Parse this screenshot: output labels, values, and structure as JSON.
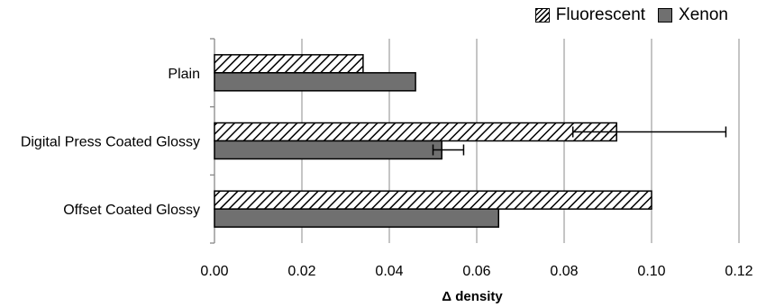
{
  "chart_data": {
    "type": "bar",
    "orientation": "horizontal",
    "categories": [
      "Plain",
      "Digital Press Coated Glossy",
      "Offset Coated Glossy"
    ],
    "series": [
      {
        "name": "Fluorescent",
        "values": [
          0.034,
          0.092,
          0.1
        ],
        "error_plus": [
          null,
          0.025,
          null
        ],
        "error_minus": [
          null,
          0.01,
          null
        ],
        "pattern": "hatch"
      },
      {
        "name": "Xenon",
        "values": [
          0.046,
          0.052,
          0.065
        ],
        "error_plus": [
          null,
          0.005,
          null
        ],
        "error_minus": [
          null,
          0.002,
          null
        ],
        "pattern": "solid",
        "color": "#707070"
      }
    ],
    "xlabel": "Δ density",
    "xlim": [
      0,
      0.12
    ],
    "xticks": [
      "0.00",
      "0.02",
      "0.04",
      "0.06",
      "0.08",
      "0.10",
      "0.12"
    ],
    "xtick_values": [
      0,
      0.02,
      0.04,
      0.06,
      0.08,
      0.1,
      0.12
    ],
    "grid": "vertical",
    "legend_position": "top-right"
  }
}
